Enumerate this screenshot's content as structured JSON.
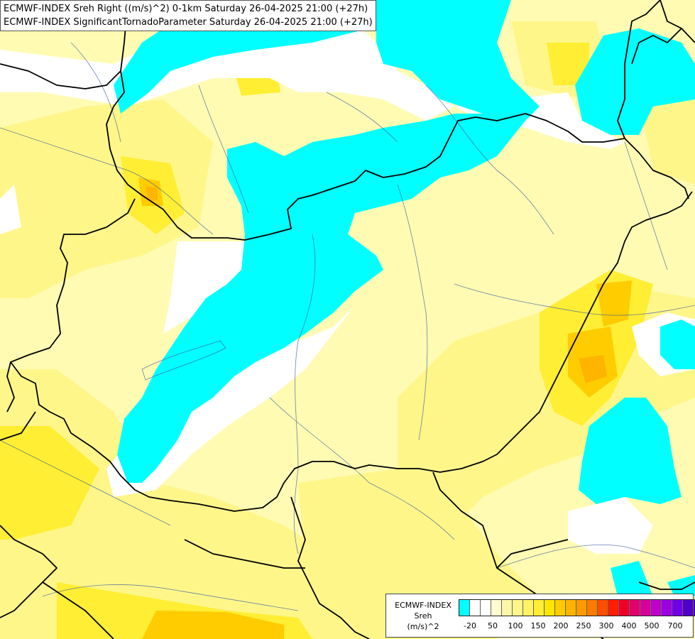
{
  "header": {
    "line1": "ECMWF-INDEX Sreh Right ((m/s)^2) 0-1km Saturday 26-04-2025 21:00 (+27h)",
    "line2": "ECMWF-INDEX SignificantTornadoParameter Saturday 26-04-2025 21:00 (+27h)"
  },
  "legend": {
    "line1": "ECMWF-INDEX",
    "line2": "Sreh",
    "line3": "(m/s)^2",
    "colors": [
      "#00ffff",
      "#ffffff",
      "#ffffff",
      "#fffbd0",
      "#fff7a8",
      "#fff68a",
      "#fff266",
      "#ffee33",
      "#ffe600",
      "#ffcc00",
      "#ffb400",
      "#ff9a00",
      "#ff7a00",
      "#ff4e00",
      "#ff1e00",
      "#f00028",
      "#e0006e",
      "#d8009a",
      "#c000c8",
      "#9a00e0",
      "#7200e6",
      "#5000c8",
      "#3a00a8",
      "#1e0078"
    ],
    "ticks": [
      "-20",
      "50",
      "100",
      "150",
      "200",
      "250",
      "300",
      "400",
      "500",
      "700"
    ]
  }
}
